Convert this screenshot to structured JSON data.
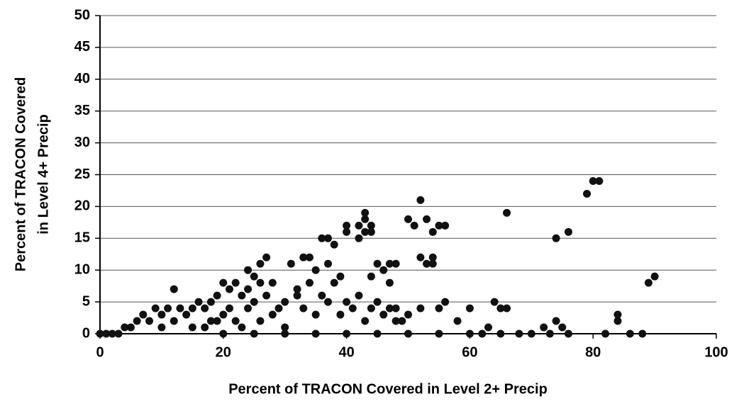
{
  "chart_data": {
    "type": "scatter",
    "xlabel": "Percent of TRACON Covered in Level 2+ Precip",
    "ylabel": [
      "Percent of TRACON Covered",
      "in Level 4+ Precip"
    ],
    "color": "#111111",
    "x": [
      12,
      52,
      66,
      74,
      76,
      79,
      80,
      81,
      89,
      90,
      84,
      84,
      86,
      88,
      82,
      76,
      74,
      75,
      72,
      73,
      70,
      68,
      65,
      64,
      66,
      63,
      60,
      58,
      56,
      55,
      53,
      54,
      55,
      56,
      50,
      51,
      53,
      54,
      52,
      54,
      42,
      43,
      44,
      43,
      42,
      44,
      40,
      40,
      43,
      37,
      36,
      34,
      33,
      38,
      39,
      37,
      38,
      45,
      46,
      47,
      48,
      44,
      42,
      45,
      47,
      35,
      31,
      32,
      30,
      28,
      27,
      26,
      25,
      24,
      22,
      23,
      20,
      21,
      19,
      18,
      17,
      16,
      15,
      14,
      13,
      11,
      10,
      9,
      8,
      7,
      6,
      5,
      4,
      3,
      2,
      1,
      0,
      20,
      22,
      24,
      26,
      28,
      25,
      23,
      19,
      17,
      15,
      12,
      10,
      30,
      33,
      35,
      37,
      39,
      41,
      43,
      46,
      48,
      50,
      52,
      49,
      32,
      34,
      36,
      29,
      27,
      18,
      21,
      24,
      26,
      40,
      45,
      50,
      55,
      60,
      35,
      30,
      25,
      20,
      40,
      65,
      62,
      47,
      48,
      44
    ],
    "y": [
      7,
      21,
      19,
      15,
      16,
      22,
      24,
      24,
      8,
      9,
      3,
      2,
      0,
      0,
      0,
      0,
      2,
      1,
      1,
      0,
      0,
      0,
      4,
      5,
      4,
      1,
      4,
      2,
      5,
      4,
      11,
      12,
      17,
      17,
      18,
      17,
      18,
      16,
      12,
      11,
      17,
      18,
      17,
      16,
      15,
      16,
      17,
      16,
      19,
      15,
      15,
      12,
      12,
      14,
      9,
      11,
      8,
      11,
      10,
      11,
      11,
      9,
      6,
      5,
      4,
      10,
      11,
      7,
      5,
      8,
      12,
      11,
      9,
      10,
      8,
      6,
      8,
      7,
      6,
      5,
      4,
      5,
      4,
      3,
      4,
      4,
      3,
      4,
      2,
      3,
      2,
      1,
      1,
      0,
      0,
      0,
      0,
      3,
      2,
      4,
      2,
      3,
      5,
      1,
      2,
      1,
      1,
      2,
      1,
      1,
      4,
      3,
      5,
      3,
      4,
      2,
      3,
      4,
      3,
      4,
      2,
      6,
      8,
      6,
      4,
      6,
      2,
      4,
      7,
      8,
      5,
      0,
      0,
      0,
      0,
      0,
      0,
      0,
      0,
      0,
      0,
      0,
      8,
      2,
      4
    ],
    "xlim": [
      0,
      100
    ],
    "xticks": [
      0,
      20,
      40,
      60,
      80,
      100
    ],
    "ylim": [
      0,
      50
    ],
    "yticks": [
      0,
      5,
      10,
      15,
      20,
      25,
      30,
      35,
      40,
      45,
      50
    ],
    "grid": true
  }
}
